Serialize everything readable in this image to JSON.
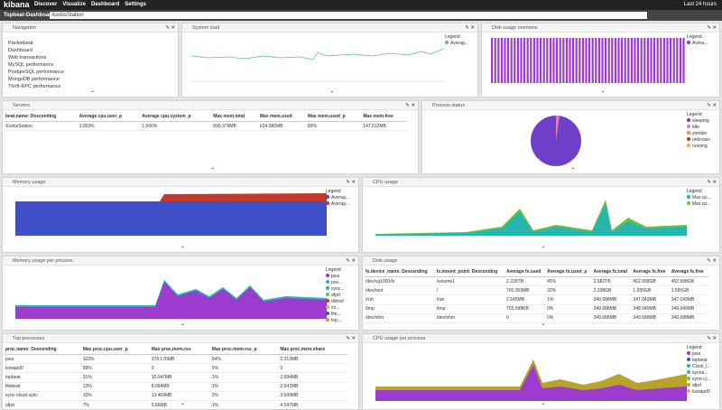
{
  "nav": {
    "brand": "kibana",
    "links": [
      "Discover",
      "Visualize",
      "Dashboard",
      "Settings"
    ],
    "time": "Last 24 hours"
  },
  "dashboard": {
    "title": "Topbeat-Dashboard",
    "query": "XodosStation"
  },
  "panels": {
    "navigation": {
      "title": "Navigation",
      "links": [
        "Packetbeat",
        "Dashboard",
        "Web transactions",
        "MySQL performance",
        "PostgreSQL performance",
        "MongoDB performance",
        "Thrift-RPC performance"
      ]
    },
    "system_load": {
      "title": "System load",
      "legend_title": "Legend",
      "legend": [
        {
          "label": "Averag...",
          "color": "#57c17b"
        }
      ]
    },
    "disk_overview": {
      "title": "Disk usage overview",
      "legend_title": "Legend",
      "legend": [
        {
          "label": "Avera...",
          "color": "#9c3ccf"
        }
      ]
    },
    "servers": {
      "title": "Servers",
      "table": {
        "headers": [
          "beat.name: Descending",
          "Average cpu.user_p",
          "Average cpu.system_p",
          "Max mem.total",
          "Max mem.used",
          "Max mem.used_p",
          "Max mem.free"
        ],
        "rows": [
          [
            "XodosStation",
            "1.003%",
            "1.566%",
            "699.379MB",
            "624.086MB",
            "89%",
            "147.512MB"
          ]
        ]
      }
    },
    "process_status": {
      "title": "Process status",
      "legend_title": "Legend",
      "legend": [
        {
          "label": "sleeping",
          "color": "#6f3fc9"
        },
        {
          "label": "idle",
          "color": "#e377c2"
        },
        {
          "label": "zombie",
          "color": "#f08f3f"
        },
        {
          "label": "unknown",
          "color": "#c0392b"
        },
        {
          "label": "running",
          "color": "#e8a35a"
        }
      ]
    },
    "memory_usage": {
      "title": "Memory usage",
      "legend_title": "Legend",
      "legend": [
        {
          "label": "Averag...",
          "color": "#3f4fc9"
        },
        {
          "label": "Averag...",
          "color": "#c0392b"
        }
      ]
    },
    "cpu_usage": {
      "title": "CPU usage",
      "legend_title": "Legend",
      "legend": [
        {
          "label": "Max cp...",
          "color": "#27b5b0"
        },
        {
          "label": "Max cp...",
          "color": "#6ec13d"
        }
      ]
    },
    "memory_per_process": {
      "title": "Memory usage per process",
      "legend_title": "Legend",
      "legend": [
        {
          "label": "java",
          "color": "#9c3ccf"
        },
        {
          "label": "pos...",
          "color": "#3aa7d9"
        },
        {
          "label": "sync...",
          "color": "#27b5b0"
        },
        {
          "label": "afpd",
          "color": "#6ec13d"
        },
        {
          "label": "ddnsd",
          "color": "#c0392b"
        },
        {
          "label": "cri...",
          "color": "#e8a35a"
        },
        {
          "label": "file...",
          "color": "#3f4fc9"
        },
        {
          "label": "top...",
          "color": "#b8a32b"
        }
      ]
    },
    "disk_usage": {
      "title": "Disk usage",
      "table": {
        "headers": [
          "fs.device_name: Descending",
          "fs.mount_point: Descending",
          "Average fs.used",
          "Average fs.used_p",
          "Average fs.total",
          "Average fs.free",
          "Average fs.free"
        ],
        "rows": [
          [
            "/dev/vg1000/lv",
            "/volume1",
            "2.239TB",
            "45%",
            "2.682TB",
            "452.998GB",
            "452.998GB"
          ],
          [
            "/dev/root",
            "/",
            "760.359MB",
            "32%",
            "2.338GB",
            "1.595GB",
            "1.595GB"
          ],
          [
            "/run",
            "/run",
            "2.645MB",
            "1%",
            "349.688MB",
            "347.043MB",
            "347.043MB"
          ],
          [
            "/tmp",
            "/tmp",
            "755.998KB",
            "0%",
            "349.688MB",
            "348.949MB",
            "348.949MB"
          ],
          [
            "/dev/shm",
            "/dev/shm",
            "0",
            "0%",
            "349.688MB",
            "349.688MB",
            "349.688MB"
          ]
        ]
      }
    },
    "top_processes": {
      "title": "Top processes",
      "table": {
        "headers": [
          "proc.name: Descending",
          "Max proc.cpu.user_p",
          "Max proc.mem.rss",
          "Max proc.mem.rss_p",
          "Max proc.mem.share"
        ],
        "rows": [
          [
            "java",
            "103%",
            "378.176MB",
            "54%",
            "2.313MB"
          ],
          [
            "kswapd0",
            "99%",
            "0",
            "0%",
            "0"
          ],
          [
            "topbeat",
            "31%",
            "10.047MB",
            "1%",
            "2.684MB"
          ],
          [
            "filebeat",
            "13%",
            "8.094MB",
            "1%",
            "2.547MB"
          ],
          [
            "sync-cloud-sync",
            "10%",
            "13.469MB",
            "2%",
            "3.699MB"
          ],
          [
            "afpd",
            "7%",
            "5.66MB",
            "1%",
            "4.547MB"
          ]
        ]
      }
    },
    "cpu_per_process": {
      "title": "CPU usage per process",
      "legend_title": "Legend",
      "legend": [
        {
          "label": "java",
          "color": "#9c3ccf"
        },
        {
          "label": "topbeat",
          "color": "#3f4fc9"
        },
        {
          "label": "Clock_l...",
          "color": "#27b5b0"
        },
        {
          "label": "synoa...",
          "color": "#3aa7d9"
        },
        {
          "label": "syno-cl...",
          "color": "#6ec13d"
        },
        {
          "label": "afpd",
          "color": "#b8a32b"
        },
        {
          "label": "kswapd0",
          "color": "#e8a35a"
        }
      ]
    }
  }
}
